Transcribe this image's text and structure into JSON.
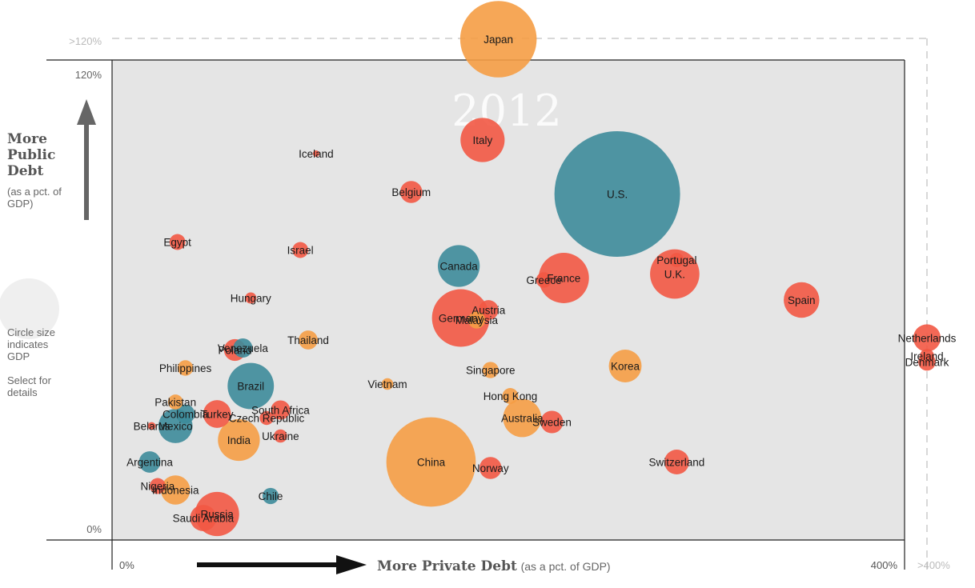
{
  "chart_data": {
    "type": "scatter",
    "title": "2012",
    "xlabel": "More Private Debt",
    "xlabel_sub": "(as a pct. of GDP)",
    "ylabel": "More Public Debt",
    "ylabel_sub": "(as a pct. of GDP)",
    "xlim": [
      0,
      400
    ],
    "ylim": [
      0,
      120
    ],
    "x_ticks": [
      "0%",
      "400%",
      ">400%"
    ],
    "y_ticks": [
      "0%",
      "120%",
      ">120%"
    ],
    "grid": false,
    "size_note": "Circle size indicates GDP",
    "select_note": "Select for details",
    "colors": {
      "teal": "#3d8b9a",
      "orange": "#f59d45",
      "red": "#f25844",
      "plot_bg": "#e5e5e5"
    },
    "points": [
      {
        "label": "Japan",
        "x": 195,
        "y": 125,
        "gdp": 6.0,
        "color": "orange",
        "overflow": "y"
      },
      {
        "label": "Italy",
        "x": 187,
        "y": 100,
        "gdp": 2.0,
        "color": "red"
      },
      {
        "label": "Iceland",
        "x": 103,
        "y": 96.6,
        "gdp": 0.014,
        "color": "red"
      },
      {
        "label": "Belgium",
        "x": 151,
        "y": 87,
        "gdp": 0.5,
        "color": "red"
      },
      {
        "label": "U.S.",
        "x": 255,
        "y": 86.5,
        "gdp": 16.2,
        "color": "teal"
      },
      {
        "label": "Egypt",
        "x": 33,
        "y": 74.5,
        "gdp": 0.26,
        "color": "red"
      },
      {
        "label": "Israel",
        "x": 95,
        "y": 72.5,
        "gdp": 0.26,
        "color": "red"
      },
      {
        "label": "Canada",
        "x": 175,
        "y": 68.5,
        "gdp": 1.8,
        "color": "teal"
      },
      {
        "label": "Portugal",
        "x": 285,
        "y": 70,
        "gdp": 0.21,
        "color": "red"
      },
      {
        "label": "U.K.",
        "x": 284,
        "y": 66.5,
        "gdp": 2.5,
        "color": "red"
      },
      {
        "label": "France",
        "x": 228,
        "y": 65.5,
        "gdp": 2.6,
        "color": "red"
      },
      {
        "label": "Greece",
        "x": 218,
        "y": 65,
        "gdp": 0.25,
        "color": "red"
      },
      {
        "label": "Hungary",
        "x": 70,
        "y": 60.5,
        "gdp": 0.13,
        "color": "red"
      },
      {
        "label": "Spain",
        "x": 348,
        "y": 60,
        "gdp": 1.3,
        "color": "red"
      },
      {
        "label": "Austria",
        "x": 190,
        "y": 57.5,
        "gdp": 0.4,
        "color": "red"
      },
      {
        "label": "Germany",
        "x": 176,
        "y": 55.5,
        "gdp": 3.4,
        "color": "red"
      },
      {
        "label": "Malaysia",
        "x": 184,
        "y": 55,
        "gdp": 0.3,
        "color": "orange"
      },
      {
        "label": "Thailand",
        "x": 99,
        "y": 50,
        "gdp": 0.37,
        "color": "orange"
      },
      {
        "label": "Venezuela",
        "x": 66,
        "y": 48,
        "gdp": 0.38,
        "color": "teal"
      },
      {
        "label": "Poland",
        "x": 62,
        "y": 47.5,
        "gdp": 0.49,
        "color": "red"
      },
      {
        "label": "Netherlands",
        "x": 407,
        "y": 50.5,
        "gdp": 0.77,
        "color": "red",
        "overflow": "x"
      },
      {
        "label": "Ireland",
        "x": 407,
        "y": 46,
        "gdp": 0.21,
        "color": "red",
        "overflow": "x"
      },
      {
        "label": "Denmark",
        "x": 407,
        "y": 44.5,
        "gdp": 0.31,
        "color": "red",
        "overflow": "x"
      },
      {
        "label": "Philippines",
        "x": 37,
        "y": 43,
        "gdp": 0.25,
        "color": "orange"
      },
      {
        "label": "Korea",
        "x": 259,
        "y": 43.5,
        "gdp": 1.1,
        "color": "orange"
      },
      {
        "label": "Singapore",
        "x": 191,
        "y": 42.5,
        "gdp": 0.27,
        "color": "orange"
      },
      {
        "label": "Vietnam",
        "x": 139,
        "y": 39,
        "gdp": 0.14,
        "color": "orange"
      },
      {
        "label": "Brazil",
        "x": 70,
        "y": 38.5,
        "gdp": 2.2,
        "color": "teal"
      },
      {
        "label": "Hong Kong",
        "x": 201,
        "y": 36,
        "gdp": 0.26,
        "color": "orange"
      },
      {
        "label": "Pakistan",
        "x": 32,
        "y": 34.5,
        "gdp": 0.23,
        "color": "orange"
      },
      {
        "label": "South Africa",
        "x": 85,
        "y": 32.5,
        "gdp": 0.38,
        "color": "red"
      },
      {
        "label": "Colombia",
        "x": 37,
        "y": 31.5,
        "gdp": 0.37,
        "color": "teal"
      },
      {
        "label": "Turkey",
        "x": 53,
        "y": 31.5,
        "gdp": 0.79,
        "color": "red"
      },
      {
        "label": "Czech Republic",
        "x": 78,
        "y": 30.5,
        "gdp": 0.2,
        "color": "red"
      },
      {
        "label": "Australia",
        "x": 207,
        "y": 30.5,
        "gdp": 1.5,
        "color": "orange"
      },
      {
        "label": "Sweden",
        "x": 222,
        "y": 29.5,
        "gdp": 0.52,
        "color": "red"
      },
      {
        "label": "Belarus",
        "x": 20,
        "y": 28.5,
        "gdp": 0.063,
        "color": "red"
      },
      {
        "label": "Mexico",
        "x": 32,
        "y": 28.5,
        "gdp": 1.2,
        "color": "teal"
      },
      {
        "label": "Ukraine",
        "x": 85,
        "y": 26,
        "gdp": 0.18,
        "color": "red"
      },
      {
        "label": "India",
        "x": 64,
        "y": 25,
        "gdp": 1.8,
        "color": "orange"
      },
      {
        "label": "Argentina",
        "x": 19,
        "y": 19.5,
        "gdp": 0.47,
        "color": "teal"
      },
      {
        "label": "Switzerland",
        "x": 285,
        "y": 19.5,
        "gdp": 0.63,
        "color": "red"
      },
      {
        "label": "China",
        "x": 161,
        "y": 19.5,
        "gdp": 8.2,
        "color": "orange"
      },
      {
        "label": "Norway",
        "x": 191,
        "y": 18,
        "gdp": 0.5,
        "color": "red"
      },
      {
        "label": "Nigeria",
        "x": 23,
        "y": 13.5,
        "gdp": 0.26,
        "color": "red"
      },
      {
        "label": "Indonesia",
        "x": 32,
        "y": 12.5,
        "gdp": 0.88,
        "color": "orange"
      },
      {
        "label": "Chile",
        "x": 80,
        "y": 11,
        "gdp": 0.27,
        "color": "teal"
      },
      {
        "label": "Russia",
        "x": 53,
        "y": 6.5,
        "gdp": 2.0,
        "color": "red"
      },
      {
        "label": "Saudi Arabia",
        "x": 46,
        "y": 5.5,
        "gdp": 0.71,
        "color": "red"
      }
    ]
  }
}
